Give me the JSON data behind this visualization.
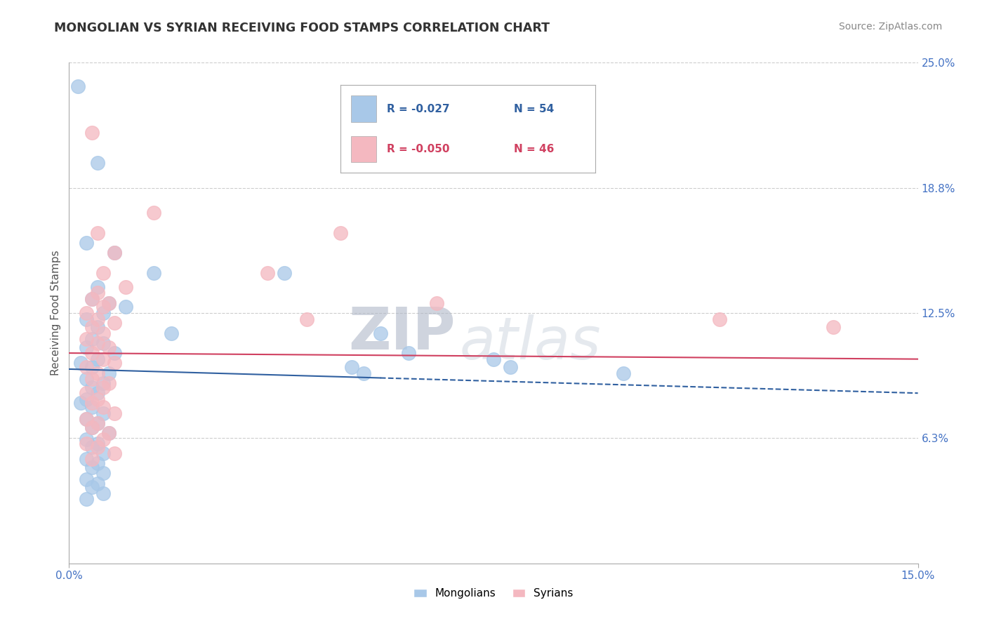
{
  "title": "MONGOLIAN VS SYRIAN RECEIVING FOOD STAMPS CORRELATION CHART",
  "source": "Source: ZipAtlas.com",
  "ylabel": "Receiving Food Stamps",
  "xlim": [
    0.0,
    15.0
  ],
  "ylim": [
    0.0,
    25.0
  ],
  "x_tick_labels": [
    "0.0%",
    "15.0%"
  ],
  "y_tick_positions": [
    6.25,
    12.5,
    18.75,
    25.0
  ],
  "y_tick_labels": [
    "6.3%",
    "12.5%",
    "18.8%",
    "25.0%"
  ],
  "mongolian_color": "#a8c8e8",
  "syrian_color": "#f4b8c0",
  "trend_mongolian_color": "#3060a0",
  "trend_syrian_color": "#d04060",
  "mongolian_R": -0.027,
  "mongolian_N": 54,
  "syrian_R": -0.05,
  "syrian_N": 46,
  "watermark_zip": "ZIP",
  "watermark_atlas": "atlas",
  "background_color": "#ffffff",
  "grid_color": "#cccccc",
  "title_color": "#333333",
  "axis_label_color": "#555555",
  "tick_label_color": "#4472c4",
  "mongolian_points": [
    [
      0.15,
      23.8
    ],
    [
      0.5,
      20.0
    ],
    [
      0.3,
      16.0
    ],
    [
      0.8,
      15.5
    ],
    [
      1.5,
      14.5
    ],
    [
      0.5,
      13.8
    ],
    [
      0.4,
      13.2
    ],
    [
      0.7,
      13.0
    ],
    [
      1.0,
      12.8
    ],
    [
      0.6,
      12.5
    ],
    [
      0.3,
      12.2
    ],
    [
      0.5,
      11.8
    ],
    [
      1.8,
      11.5
    ],
    [
      0.4,
      11.2
    ],
    [
      0.6,
      11.0
    ],
    [
      0.3,
      10.8
    ],
    [
      0.8,
      10.5
    ],
    [
      0.5,
      10.2
    ],
    [
      0.2,
      10.0
    ],
    [
      0.4,
      9.8
    ],
    [
      0.7,
      9.5
    ],
    [
      0.3,
      9.2
    ],
    [
      0.6,
      9.0
    ],
    [
      0.4,
      8.8
    ],
    [
      0.5,
      8.5
    ],
    [
      0.3,
      8.2
    ],
    [
      0.2,
      8.0
    ],
    [
      0.4,
      7.8
    ],
    [
      0.6,
      7.5
    ],
    [
      0.3,
      7.2
    ],
    [
      0.5,
      7.0
    ],
    [
      0.4,
      6.8
    ],
    [
      0.7,
      6.5
    ],
    [
      0.3,
      6.2
    ],
    [
      0.5,
      6.0
    ],
    [
      0.4,
      5.8
    ],
    [
      0.6,
      5.5
    ],
    [
      0.3,
      5.2
    ],
    [
      0.5,
      5.0
    ],
    [
      0.4,
      4.8
    ],
    [
      0.6,
      4.5
    ],
    [
      0.3,
      4.2
    ],
    [
      0.5,
      4.0
    ],
    [
      0.4,
      3.8
    ],
    [
      0.6,
      3.5
    ],
    [
      0.3,
      3.2
    ],
    [
      3.8,
      14.5
    ],
    [
      5.5,
      11.5
    ],
    [
      6.0,
      10.5
    ],
    [
      5.2,
      9.5
    ],
    [
      7.5,
      10.2
    ],
    [
      9.8,
      9.5
    ],
    [
      5.0,
      9.8
    ],
    [
      7.8,
      9.8
    ]
  ],
  "syrian_points": [
    [
      0.4,
      21.5
    ],
    [
      1.5,
      17.5
    ],
    [
      0.5,
      16.5
    ],
    [
      0.8,
      15.5
    ],
    [
      0.6,
      14.5
    ],
    [
      1.0,
      13.8
    ],
    [
      0.5,
      13.5
    ],
    [
      0.4,
      13.2
    ],
    [
      0.7,
      13.0
    ],
    [
      0.6,
      12.8
    ],
    [
      0.3,
      12.5
    ],
    [
      0.5,
      12.2
    ],
    [
      0.8,
      12.0
    ],
    [
      0.4,
      11.8
    ],
    [
      0.6,
      11.5
    ],
    [
      0.3,
      11.2
    ],
    [
      0.5,
      11.0
    ],
    [
      0.7,
      10.8
    ],
    [
      0.4,
      10.5
    ],
    [
      0.6,
      10.2
    ],
    [
      0.8,
      10.0
    ],
    [
      0.3,
      9.8
    ],
    [
      0.5,
      9.5
    ],
    [
      0.4,
      9.2
    ],
    [
      0.7,
      9.0
    ],
    [
      0.6,
      8.8
    ],
    [
      0.3,
      8.5
    ],
    [
      0.5,
      8.2
    ],
    [
      0.4,
      8.0
    ],
    [
      0.6,
      7.8
    ],
    [
      0.8,
      7.5
    ],
    [
      0.3,
      7.2
    ],
    [
      0.5,
      7.0
    ],
    [
      0.4,
      6.8
    ],
    [
      0.7,
      6.5
    ],
    [
      0.6,
      6.2
    ],
    [
      0.3,
      6.0
    ],
    [
      0.5,
      5.8
    ],
    [
      0.8,
      5.5
    ],
    [
      0.4,
      5.2
    ],
    [
      4.8,
      16.5
    ],
    [
      3.5,
      14.5
    ],
    [
      6.5,
      13.0
    ],
    [
      4.2,
      12.2
    ],
    [
      11.5,
      12.2
    ],
    [
      13.5,
      11.8
    ]
  ]
}
